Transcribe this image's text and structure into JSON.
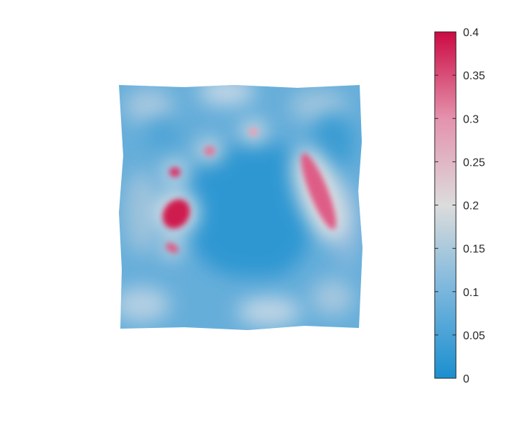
{
  "chart_data": {
    "type": "heatmap",
    "title": "",
    "xlabel": "",
    "ylabel": "",
    "axes_visible": false,
    "colorbar": {
      "location": "right",
      "range": [
        0,
        0.4
      ],
      "ticks": [
        0,
        0.05,
        0.1,
        0.15,
        0.2,
        0.25,
        0.3,
        0.35,
        0.4
      ],
      "tick_labels": [
        "0",
        "0.05",
        "0.1",
        "0.15",
        "0.2",
        "0.25",
        "0.3",
        "0.35",
        "0.4"
      ],
      "colormap": [
        {
          "value": 0,
          "color": "#1a8fcf"
        },
        {
          "value": 0.1,
          "color": "#79b6dd"
        },
        {
          "value": 0.2,
          "color": "#dcdcdc"
        },
        {
          "value": 0.3,
          "color": "#e492ad"
        },
        {
          "value": 0.4,
          "color": "#cc0a43"
        }
      ]
    },
    "field": {
      "background_value": 0.08,
      "central_region_value": 0.02,
      "features": [
        {
          "name": "large left hotspot",
          "peak_value": 0.38
        },
        {
          "name": "upper-left spot",
          "peak_value": 0.34
        },
        {
          "name": "lower-left sliver",
          "peak_value": 0.3
        },
        {
          "name": "upper spot",
          "peak_value": 0.28
        },
        {
          "name": "top spot",
          "peak_value": 0.24
        },
        {
          "name": "right elongated ridge",
          "peak_value": 0.3
        }
      ]
    }
  }
}
